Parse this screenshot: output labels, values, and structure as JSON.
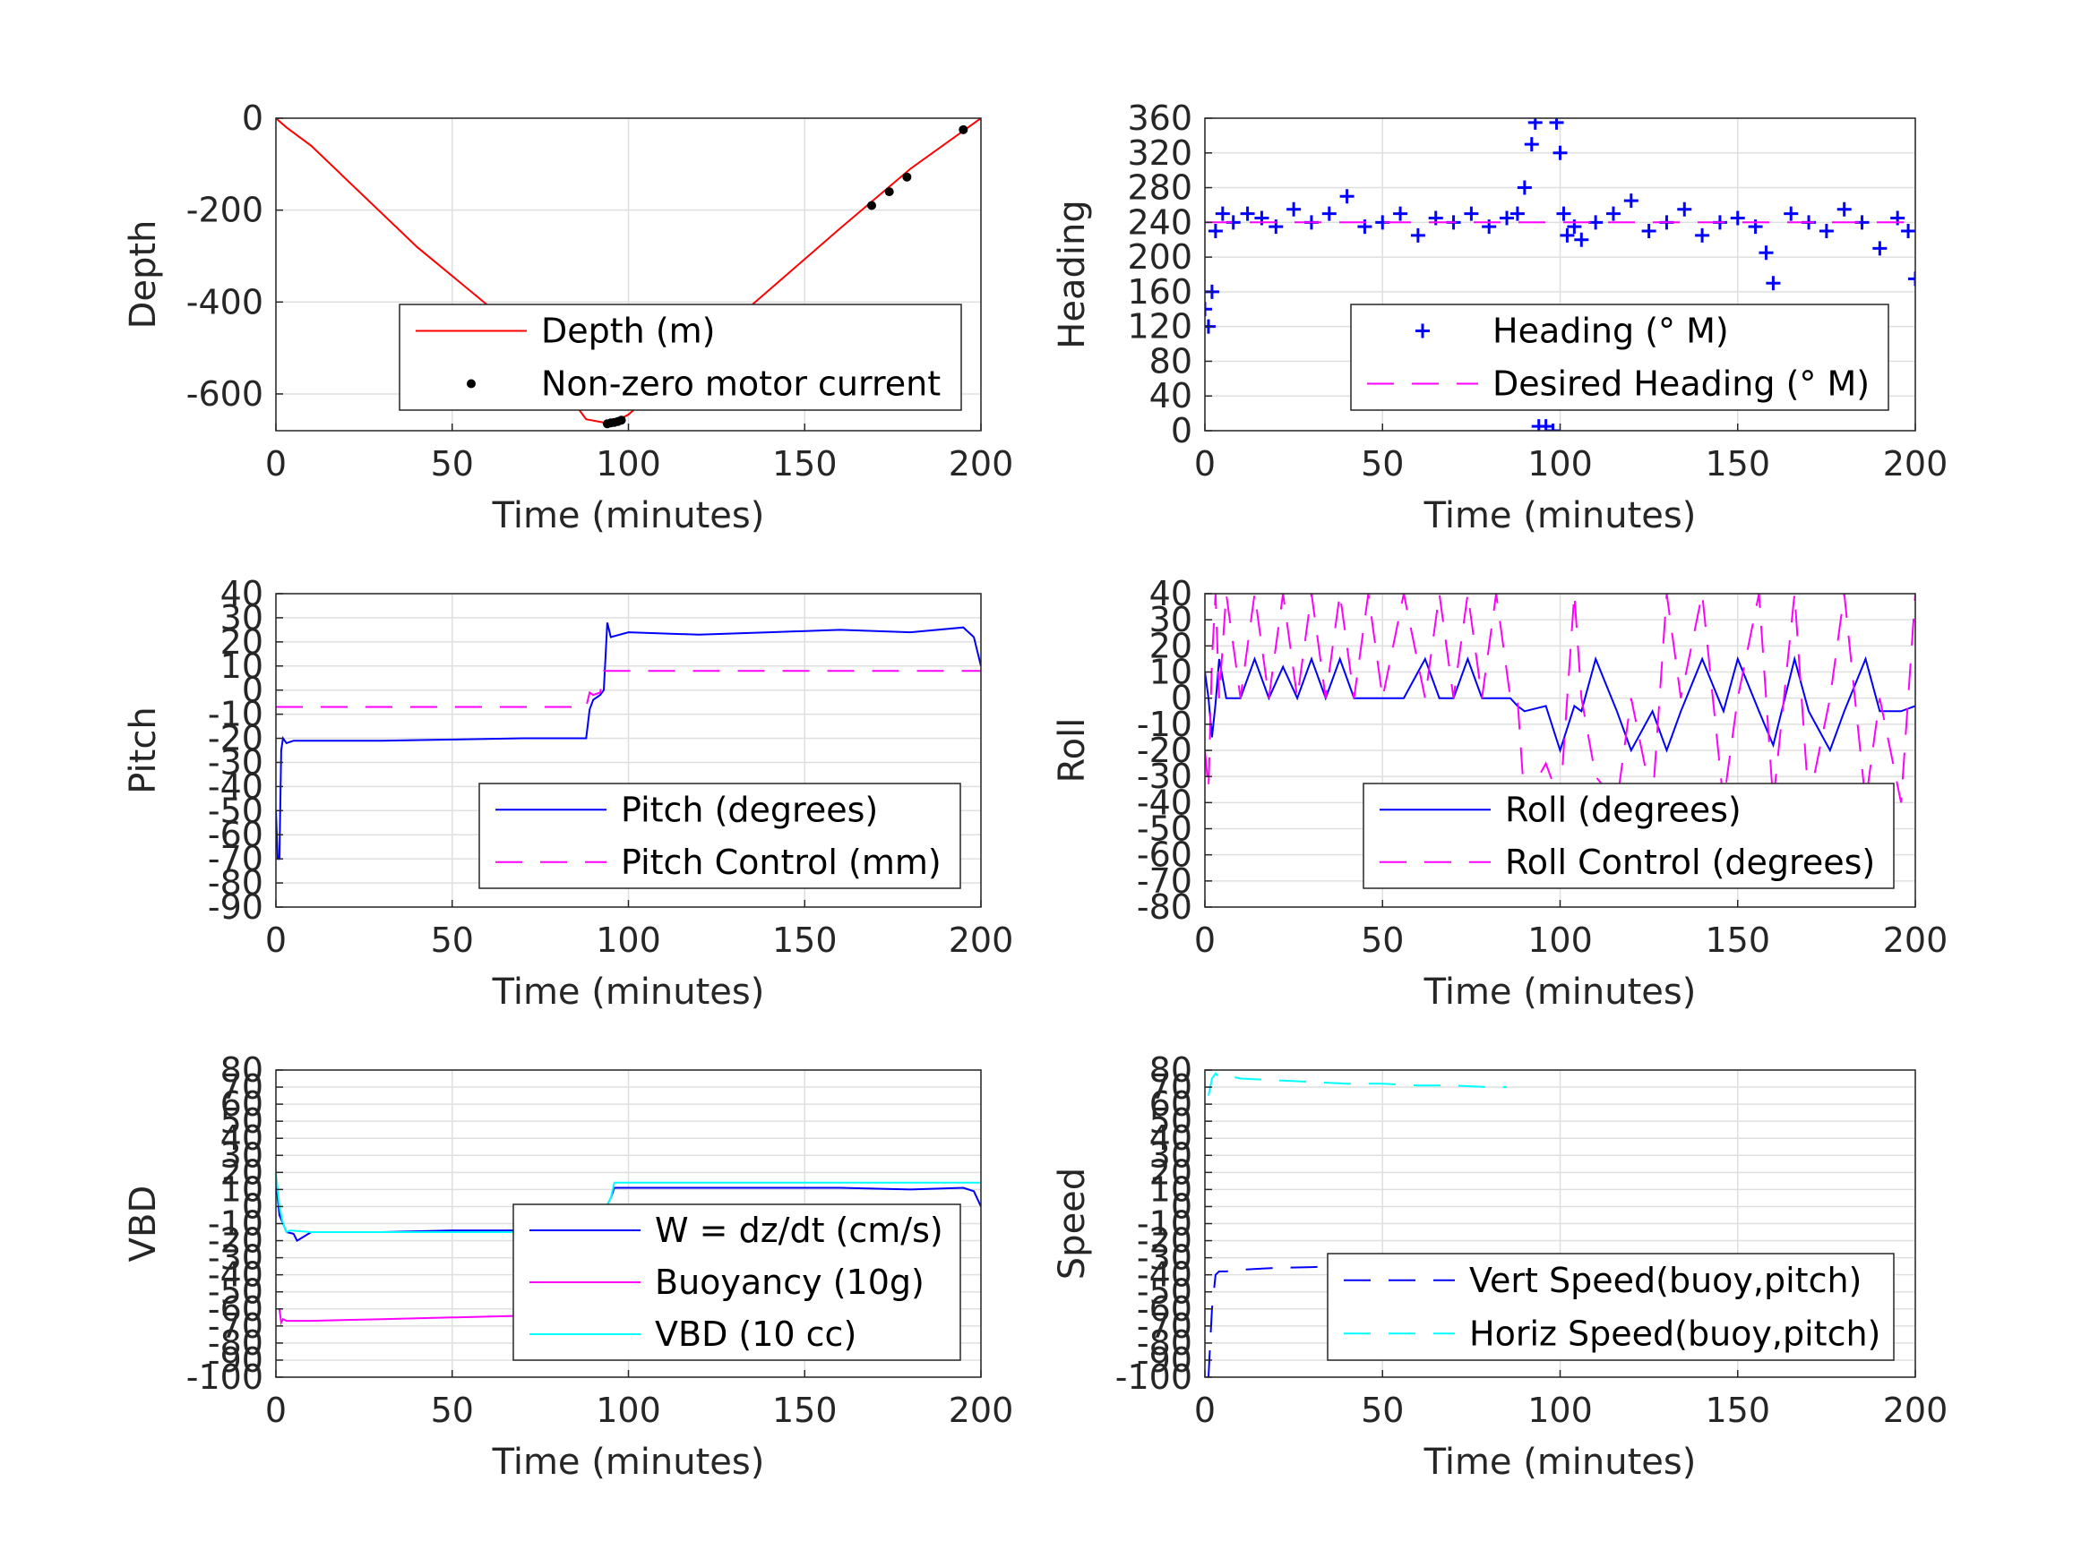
{
  "chart_data": [
    {
      "type": "line",
      "ylabel": "Depth",
      "xlabel": "Time (minutes)",
      "xlim": [
        0,
        200
      ],
      "ylim": [
        -680,
        0
      ],
      "xticks": [
        "0",
        "50",
        "100",
        "150",
        "200"
      ],
      "yticks": [
        0,
        -200,
        -400,
        -600
      ],
      "ytick_labels": [
        "0",
        "-200",
        "-400",
        "-600"
      ],
      "grid": true,
      "legend_position": "bottom-right",
      "series": [
        {
          "name": "Depth (m)",
          "style": "solid",
          "marker": "none",
          "color": "#ff0000",
          "x": [
            0,
            3,
            10,
            40,
            70,
            88,
            95,
            100,
            130,
            160,
            180,
            200
          ],
          "y": [
            0,
            -20,
            -60,
            -280,
            -470,
            -655,
            -665,
            -645,
            -440,
            -240,
            -110,
            0
          ]
        },
        {
          "name": "Non-zero motor current",
          "style": "none",
          "marker": "dot",
          "color": "#000000",
          "x": [
            94,
            95,
            96,
            97,
            98,
            169,
            174,
            179,
            195
          ],
          "y": [
            -665,
            -663,
            -662,
            -660,
            -657,
            -190,
            -160,
            -128,
            -25
          ]
        }
      ]
    },
    {
      "type": "line",
      "ylabel": "Heading",
      "xlabel": "Time (minutes)",
      "xlim": [
        0,
        200
      ],
      "ylim": [
        0,
        360
      ],
      "xticks": [
        "0",
        "50",
        "100",
        "150",
        "200"
      ],
      "yticks": [
        0,
        40,
        80,
        120,
        160,
        200,
        240,
        280,
        320,
        360
      ],
      "ytick_labels": [
        "0",
        "40",
        "80",
        "120",
        "160",
        "200",
        "240",
        "280",
        "320",
        "360"
      ],
      "grid": true,
      "legend_position": "bottom-right",
      "series": [
        {
          "name": "Heading (° M)",
          "style": "none",
          "marker": "plus",
          "color": "#0000ff",
          "x": [
            0,
            1,
            2,
            3,
            5,
            8,
            12,
            16,
            20,
            25,
            30,
            35,
            40,
            45,
            50,
            55,
            60,
            65,
            70,
            75,
            80,
            85,
            88,
            90,
            92,
            93,
            94,
            95,
            96,
            97,
            98,
            99,
            100,
            101,
            102,
            104,
            106,
            110,
            115,
            120,
            125,
            130,
            135,
            140,
            145,
            150,
            155,
            158,
            160,
            165,
            170,
            175,
            180,
            185,
            190,
            195,
            198,
            200
          ],
          "y": [
            140,
            120,
            160,
            230,
            250,
            240,
            250,
            245,
            235,
            255,
            240,
            250,
            270,
            235,
            240,
            250,
            225,
            245,
            240,
            250,
            235,
            245,
            250,
            280,
            330,
            355,
            5,
            70,
            5,
            60,
            0,
            355,
            320,
            250,
            225,
            235,
            220,
            240,
            250,
            265,
            230,
            240,
            255,
            225,
            240,
            245,
            235,
            205,
            170,
            250,
            240,
            230,
            255,
            240,
            210,
            245,
            230,
            175
          ]
        },
        {
          "name": "Desired Heading (° M)",
          "style": "dashed",
          "marker": "none",
          "color": "#ff00ff",
          "x": [
            0,
            200
          ],
          "y": [
            240,
            240
          ]
        }
      ]
    },
    {
      "type": "line",
      "ylabel": "Pitch",
      "xlabel": "Time (minutes)",
      "xlim": [
        0,
        200
      ],
      "ylim": [
        -90,
        40
      ],
      "xticks": [
        "0",
        "50",
        "100",
        "150",
        "200"
      ],
      "yticks": [
        40,
        30,
        20,
        10,
        0,
        -10,
        -20,
        -30,
        -40,
        -50,
        -60,
        -70,
        -80,
        -90
      ],
      "ytick_labels": [
        "40",
        "30",
        "20",
        "10",
        "0",
        "-10",
        "-20",
        "-30",
        "-40",
        "-50",
        "-60",
        "-70",
        "-80",
        "-90"
      ],
      "grid": true,
      "legend_position": "bottom-right",
      "series": [
        {
          "name": "Pitch (degrees)",
          "style": "solid",
          "marker": "none",
          "color": "#0000ff",
          "x": [
            0,
            0.5,
            1,
            1.5,
            2,
            3,
            5,
            10,
            30,
            50,
            70,
            87,
            88,
            89,
            90,
            92,
            93,
            94,
            95,
            100,
            120,
            140,
            160,
            180,
            195,
            198,
            200
          ],
          "y": [
            -50,
            -70,
            -70,
            -25,
            -20,
            -22,
            -21,
            -21,
            -21,
            -20.5,
            -20,
            -20,
            -20,
            -8,
            -4,
            -2,
            0,
            28,
            22,
            24,
            23,
            24,
            25,
            24,
            26,
            22,
            10
          ]
        },
        {
          "name": "Pitch Control (mm)",
          "style": "dashed",
          "marker": "none",
          "color": "#ff00ff",
          "x": [
            0,
            87,
            88,
            89,
            90,
            92,
            93,
            200
          ],
          "y": [
            -7,
            -7,
            -7,
            -1,
            -2,
            -1,
            8,
            8
          ]
        }
      ]
    },
    {
      "type": "line",
      "ylabel": "Roll",
      "xlabel": "Time (minutes)",
      "xlim": [
        0,
        200
      ],
      "ylim": [
        -80,
        40
      ],
      "xticks": [
        "0",
        "50",
        "100",
        "150",
        "200"
      ],
      "yticks": [
        40,
        30,
        20,
        10,
        0,
        -10,
        -20,
        -30,
        -40,
        -50,
        -60,
        -70,
        -80
      ],
      "ytick_labels": [
        "40",
        "30",
        "20",
        "10",
        "0",
        "-10",
        "-20",
        "-30",
        "-40",
        "-50",
        "-60",
        "-70",
        "-80"
      ],
      "grid": true,
      "legend_position": "bottom-right",
      "series": [
        {
          "name": "Roll (degrees)",
          "style": "solid",
          "marker": "none",
          "color": "#0000ff",
          "x": [
            0,
            1,
            2,
            3,
            4,
            6,
            10,
            14,
            18,
            22,
            26,
            30,
            34,
            38,
            42,
            46,
            50,
            56,
            62,
            66,
            70,
            74,
            78,
            82,
            86,
            88,
            90,
            96,
            100,
            104,
            106,
            110,
            116,
            120,
            126,
            130,
            134,
            140,
            146,
            150,
            156,
            160,
            166,
            170,
            176,
            180,
            186,
            190,
            196,
            200
          ],
          "y": [
            10,
            0,
            -15,
            -2,
            15,
            0,
            0,
            15,
            0,
            12,
            0,
            15,
            0,
            15,
            0,
            0,
            0,
            0,
            15,
            0,
            0,
            15,
            0,
            0,
            0,
            -3,
            -5,
            -3,
            -20,
            -3,
            -5,
            15,
            -5,
            -20,
            -5,
            -20,
            -5,
            15,
            -5,
            15,
            -5,
            -18,
            15,
            -5,
            -20,
            -5,
            15,
            -5,
            -5,
            -3
          ]
        },
        {
          "name": "Roll Control (degrees)",
          "style": "dashed",
          "marker": "none",
          "color": "#ff00ff",
          "x": [
            0,
            1,
            2,
            3,
            4,
            6,
            10,
            14,
            18,
            22,
            26,
            30,
            34,
            38,
            42,
            46,
            50,
            56,
            62,
            66,
            70,
            74,
            78,
            82,
            86,
            88,
            90,
            96,
            100,
            104,
            106,
            110,
            116,
            120,
            126,
            130,
            134,
            140,
            146,
            150,
            156,
            160,
            166,
            170,
            176,
            180,
            186,
            190,
            196,
            200
          ],
          "y": [
            -20,
            -35,
            15,
            40,
            0,
            40,
            0,
            40,
            0,
            40,
            0,
            40,
            0,
            40,
            0,
            40,
            0,
            40,
            0,
            40,
            0,
            40,
            0,
            40,
            0,
            0,
            -40,
            -25,
            -40,
            40,
            0,
            -30,
            -40,
            0,
            -40,
            40,
            0,
            40,
            -40,
            0,
            40,
            -40,
            40,
            -40,
            0,
            40,
            -40,
            0,
            -40,
            40
          ]
        }
      ]
    },
    {
      "type": "line",
      "ylabel": "VBD",
      "xlabel": "Time (minutes)",
      "xlim": [
        0,
        200
      ],
      "ylim": [
        -100,
        80
      ],
      "xticks": [
        "0",
        "50",
        "100",
        "150",
        "200"
      ],
      "yticks": [
        80,
        70,
        60,
        50,
        40,
        30,
        20,
        10,
        0,
        -10,
        -20,
        -30,
        -40,
        -50,
        -60,
        -70,
        -80,
        -90,
        -100
      ],
      "ytick_labels": [
        "80",
        "70",
        "60",
        "50",
        "40",
        "30",
        "20",
        "10",
        "0",
        "-10",
        "-20",
        "-30",
        "-40",
        "-50",
        "-60",
        "-70",
        "-80",
        "-90",
        "-100"
      ],
      "grid": true,
      "legend_position": "bottom-right",
      "series": [
        {
          "name": "W = dz/dt (cm/s)",
          "style": "solid",
          "marker": "none",
          "color": "#0000ff",
          "x": [
            0,
            1,
            2,
            3,
            5,
            6,
            10,
            30,
            50,
            70,
            87,
            88,
            90,
            93,
            95,
            96,
            100,
            120,
            140,
            160,
            180,
            195,
            198,
            200
          ],
          "y": [
            15,
            -5,
            -10,
            -15,
            -16,
            -20,
            -15,
            -15,
            -14,
            -14,
            -14,
            -13,
            -12,
            -3,
            5,
            11,
            11,
            11,
            11,
            11,
            10,
            11,
            9,
            0
          ]
        },
        {
          "name": "Buoyancy (10g)",
          "style": "solid",
          "marker": "none",
          "color": "#ff00ff",
          "x": [
            1,
            1.5,
            2,
            3,
            10,
            30,
            50,
            70,
            88
          ],
          "y": [
            -60,
            -68,
            -66,
            -67,
            -67,
            -66,
            -65,
            -64,
            -64
          ]
        },
        {
          "name": "VBD (10 cc)",
          "style": "solid",
          "marker": "none",
          "color": "#00ffff",
          "x": [
            0,
            1,
            2,
            3,
            4,
            10,
            30,
            50,
            70,
            87,
            88,
            90,
            93,
            95,
            96,
            100,
            120,
            140,
            160,
            180,
            200
          ],
          "y": [
            20,
            0,
            -10,
            -15,
            -14,
            -15,
            -15,
            -15,
            -15,
            -15,
            -13,
            -10,
            -3,
            5,
            14,
            14,
            14,
            14,
            14,
            14,
            14
          ]
        }
      ]
    },
    {
      "type": "line",
      "ylabel": "Speed",
      "xlabel": "Time (minutes)",
      "xlim": [
        0,
        200
      ],
      "ylim": [
        -100,
        80
      ],
      "xticks": [
        "0",
        "50",
        "100",
        "150",
        "200"
      ],
      "yticks": [
        80,
        70,
        60,
        50,
        40,
        30,
        20,
        10,
        0,
        -10,
        -20,
        -30,
        -40,
        -50,
        -60,
        -70,
        -80,
        -90,
        -100
      ],
      "ytick_labels": [
        "80",
        "70",
        "60",
        "50",
        "40",
        "30",
        "20",
        "10",
        "0",
        "-10",
        "-20",
        "-30",
        "-40",
        "-50",
        "-60",
        "-70",
        "-80",
        "-90",
        "-100"
      ],
      "grid": true,
      "legend_position": "bottom-right",
      "series": [
        {
          "name": "Vert Speed(buoy,pitch)",
          "style": "dashed",
          "marker": "none",
          "color": "#0000ff",
          "x": [
            1,
            1.5,
            2,
            3,
            4,
            6,
            10,
            20,
            30,
            40,
            50,
            60,
            70,
            80,
            88
          ],
          "y": [
            -100,
            -80,
            -60,
            -40,
            -38,
            -38,
            -37,
            -36,
            -35.5,
            -35,
            -35,
            -34.5,
            -34,
            -34,
            -33
          ]
        },
        {
          "name": "Horiz Speed(buoy,pitch)",
          "style": "dashed",
          "marker": "none",
          "color": "#00ffff",
          "x": [
            1,
            2,
            3,
            4,
            5,
            8,
            10,
            20,
            30,
            40,
            50,
            60,
            70,
            80,
            85
          ],
          "y": [
            65,
            75,
            78,
            76,
            77,
            76,
            75,
            74,
            73,
            72,
            72,
            71,
            71,
            70,
            70
          ]
        }
      ]
    }
  ]
}
